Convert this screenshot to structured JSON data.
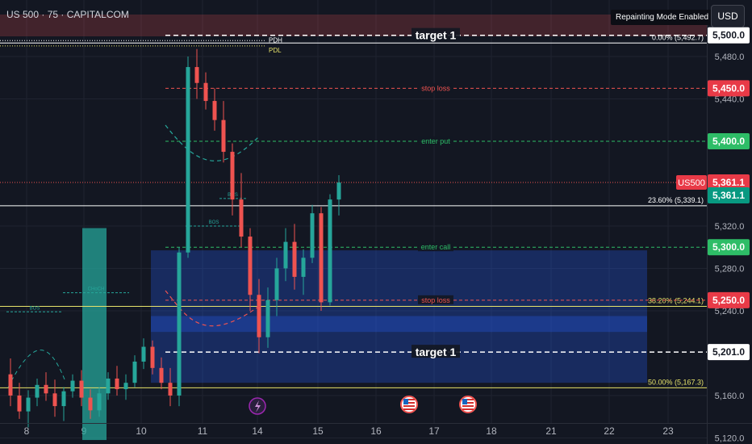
{
  "header": {
    "symbol_title": "US 500 · 75 · CAPITALCOM",
    "repaint_badge": "Repainting Mode Enabled",
    "currency_label": "USD"
  },
  "colors": {
    "background": "#131722",
    "up_candle": "#26a69a",
    "down_candle": "#ef5350",
    "green_label": "#2ebd67",
    "red_label": "#e83a47",
    "teal_label": "#089981",
    "blue_zone": "#2962ff",
    "yellow_line": "#e7e36a"
  },
  "chart_data": {
    "type": "candlestick",
    "x_tick_labels": [
      "8",
      "9",
      "10",
      "11",
      "14",
      "15",
      "16",
      "17",
      "18",
      "21",
      "22",
      "23"
    ],
    "y_tick_labels": [
      "5,120.0",
      "5,160.0",
      "5,240.0",
      "5,280.0",
      "5,320.0",
      "5,440.0",
      "5,480.0"
    ],
    "ylim": [
      5115,
      5515
    ],
    "price_labels": [
      {
        "text": "5,500.0",
        "value": 5500.0,
        "style": "white"
      },
      {
        "text": "5,450.0",
        "value": 5450.0,
        "style": "red"
      },
      {
        "text": "5,400.0",
        "value": 5400.0,
        "style": "green"
      },
      {
        "text": "5,361.1",
        "value": 5361.1,
        "style": "red",
        "tag": "US500"
      },
      {
        "text": "5,361.1",
        "value": 5361.1,
        "style": "teal"
      },
      {
        "text": "5,300.0",
        "value": 5300.0,
        "style": "green"
      },
      {
        "text": "5,250.0",
        "value": 5250.0,
        "style": "red"
      },
      {
        "text": "5,201.0",
        "value": 5201.0,
        "style": "white"
      }
    ],
    "levels": [
      {
        "label": "target 1",
        "value": 5500.0,
        "style": "target"
      },
      {
        "label": "stop loss",
        "value": 5450.0,
        "style": "stop"
      },
      {
        "label": "enter put",
        "value": 5400.0,
        "style": "enter"
      },
      {
        "label": "enter call",
        "value": 5300.0,
        "style": "enter"
      },
      {
        "label": "stop loss",
        "value": 5250.0,
        "style": "stop"
      },
      {
        "label": "target 1",
        "value": 5201.0,
        "style": "target"
      }
    ],
    "fib_levels": [
      {
        "label": "0.00% (5,492.7)",
        "value": 5492.7,
        "color": "#ffffff"
      },
      {
        "label": "23.60% (5,339.1)",
        "value": 5339.1,
        "color": "#ffffff"
      },
      {
        "label": "38.20% (5,244.1)",
        "value": 5244.1,
        "color": "#e7e36a"
      },
      {
        "label": "50.00% (5,167.3)",
        "value": 5167.3,
        "color": "#e7e36a"
      }
    ],
    "structure_labels": [
      "BOS",
      "CHoCH",
      "BOS",
      "BOS"
    ],
    "pdh_label": "PDH",
    "pdl_label": "PDL",
    "candles": [
      {
        "x": 0.5,
        "o": 5180,
        "h": 5195,
        "l": 5150,
        "c": 5160
      },
      {
        "x": 1.0,
        "o": 5160,
        "h": 5172,
        "l": 5138,
        "c": 5145
      },
      {
        "x": 1.5,
        "o": 5145,
        "h": 5165,
        "l": 5130,
        "c": 5158
      },
      {
        "x": 2.0,
        "o": 5158,
        "h": 5176,
        "l": 5150,
        "c": 5170
      },
      {
        "x": 2.5,
        "o": 5170,
        "h": 5182,
        "l": 5155,
        "c": 5162
      },
      {
        "x": 3.0,
        "o": 5162,
        "h": 5175,
        "l": 5140,
        "c": 5150
      },
      {
        "x": 3.5,
        "o": 5150,
        "h": 5168,
        "l": 5136,
        "c": 5164
      },
      {
        "x": 4.0,
        "o": 5164,
        "h": 5180,
        "l": 5158,
        "c": 5174
      },
      {
        "x": 4.5,
        "o": 5174,
        "h": 5184,
        "l": 5150,
        "c": 5158
      },
      {
        "x": 5.0,
        "o": 5158,
        "h": 5166,
        "l": 5138,
        "c": 5146
      },
      {
        "x": 5.5,
        "o": 5146,
        "h": 5168,
        "l": 5140,
        "c": 5162
      },
      {
        "x": 6.0,
        "o": 5162,
        "h": 5182,
        "l": 5156,
        "c": 5176
      },
      {
        "x": 6.5,
        "o": 5176,
        "h": 5188,
        "l": 5160,
        "c": 5166
      },
      {
        "x": 7.0,
        "o": 5166,
        "h": 5180,
        "l": 5156,
        "c": 5172
      },
      {
        "x": 7.5,
        "o": 5172,
        "h": 5198,
        "l": 5168,
        "c": 5192
      },
      {
        "x": 8.0,
        "o": 5192,
        "h": 5214,
        "l": 5185,
        "c": 5206
      },
      {
        "x": 8.5,
        "o": 5206,
        "h": 5212,
        "l": 5180,
        "c": 5186
      },
      {
        "x": 9.0,
        "o": 5186,
        "h": 5196,
        "l": 5166,
        "c": 5172
      },
      {
        "x": 9.5,
        "o": 5172,
        "h": 5186,
        "l": 5150,
        "c": 5160
      },
      {
        "x": 10.0,
        "o": 5160,
        "h": 5300,
        "l": 5150,
        "c": 5295
      },
      {
        "x": 10.5,
        "o": 5295,
        "h": 5480,
        "l": 5290,
        "c": 5470
      },
      {
        "x": 11.0,
        "o": 5470,
        "h": 5487,
        "l": 5440,
        "c": 5455
      },
      {
        "x": 11.5,
        "o": 5455,
        "h": 5465,
        "l": 5430,
        "c": 5438
      },
      {
        "x": 12.0,
        "o": 5438,
        "h": 5450,
        "l": 5410,
        "c": 5420
      },
      {
        "x": 12.5,
        "o": 5420,
        "h": 5438,
        "l": 5380,
        "c": 5390
      },
      {
        "x": 13.0,
        "o": 5390,
        "h": 5398,
        "l": 5330,
        "c": 5345
      },
      {
        "x": 13.5,
        "o": 5345,
        "h": 5370,
        "l": 5300,
        "c": 5310
      },
      {
        "x": 14.0,
        "o": 5310,
        "h": 5318,
        "l": 5240,
        "c": 5255
      },
      {
        "x": 14.5,
        "o": 5255,
        "h": 5270,
        "l": 5200,
        "c": 5215
      },
      {
        "x": 15.0,
        "o": 5215,
        "h": 5262,
        "l": 5205,
        "c": 5250
      },
      {
        "x": 15.5,
        "o": 5250,
        "h": 5290,
        "l": 5235,
        "c": 5280
      },
      {
        "x": 16.0,
        "o": 5280,
        "h": 5318,
        "l": 5268,
        "c": 5305
      },
      {
        "x": 16.5,
        "o": 5305,
        "h": 5322,
        "l": 5260,
        "c": 5272
      },
      {
        "x": 17.0,
        "o": 5272,
        "h": 5298,
        "l": 5255,
        "c": 5290
      },
      {
        "x": 17.5,
        "o": 5290,
        "h": 5340,
        "l": 5285,
        "c": 5332
      },
      {
        "x": 18.0,
        "o": 5332,
        "h": 5338,
        "l": 5240,
        "c": 5248
      },
      {
        "x": 18.5,
        "o": 5248,
        "h": 5350,
        "l": 5245,
        "c": 5345
      },
      {
        "x": 19.0,
        "o": 5345,
        "h": 5368,
        "l": 5330,
        "c": 5361
      }
    ],
    "zones": [
      {
        "from_x": 10.0,
        "to_x": 13.0,
        "y0": 5118,
        "y1": 5318,
        "color": "#26a69a"
      },
      {
        "from_x": 18.5,
        "to_x": 80,
        "y0": 5172,
        "y1": 5297,
        "color": "#2962ff"
      },
      {
        "from_x": 18.5,
        "to_x": 80,
        "y0": 5220,
        "y1": 5235,
        "color": "#2962ff"
      }
    ]
  }
}
